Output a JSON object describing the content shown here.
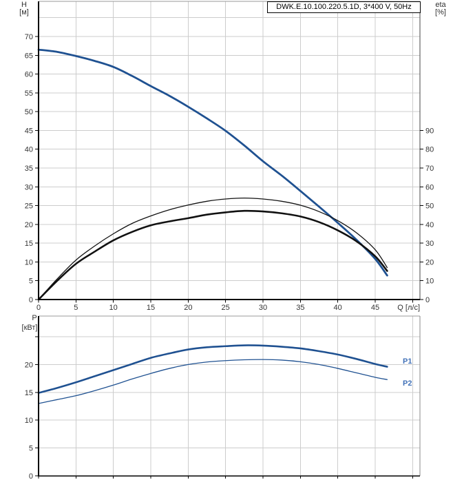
{
  "chart_data": [
    {
      "id": "qh-efficiency-chart",
      "type": "line",
      "title_box": "DWK.E.10.100.220.5.1D, 3*400 V, 50Hz",
      "x_axis": {
        "unit": "Q [л/с]",
        "min": 0,
        "max": 51,
        "grid_step": 5,
        "tick_labels": [
          0,
          5,
          10,
          15,
          20,
          25,
          30,
          35,
          40,
          45
        ]
      },
      "y_left": {
        "name": "H",
        "unit": "[м]",
        "min": 0,
        "max": 79,
        "tick_labels": [
          0,
          5,
          10,
          15,
          20,
          25,
          30,
          35,
          40,
          45,
          50,
          55,
          60,
          65,
          70
        ]
      },
      "y_right": {
        "name": "eta",
        "unit": "[%]",
        "min": 0,
        "max": 158,
        "tick_labels": [
          0,
          10,
          20,
          30,
          40,
          50,
          60,
          70,
          80,
          90
        ]
      },
      "grid_color": "#cccccc",
      "series": [
        {
          "name": "h-curve",
          "axis": "left",
          "color": "#1f5191",
          "width": 2.8,
          "points": [
            [
              0,
              66.5
            ],
            [
              2.5,
              65.9
            ],
            [
              5,
              64.8
            ],
            [
              7.5,
              63.5
            ],
            [
              10,
              61.9
            ],
            [
              12.5,
              59.5
            ],
            [
              15,
              56.8
            ],
            [
              17.5,
              54.2
            ],
            [
              20,
              51.3
            ],
            [
              22.5,
              48.2
            ],
            [
              25,
              44.9
            ],
            [
              27.5,
              41.0
            ],
            [
              30,
              36.8
            ],
            [
              32.5,
              33.0
            ],
            [
              35,
              28.9
            ],
            [
              37.5,
              24.7
            ],
            [
              40,
              20.4
            ],
            [
              42.5,
              15.9
            ],
            [
              45,
              10.8
            ],
            [
              46.6,
              6.4
            ]
          ]
        },
        {
          "name": "eta-pump-curve",
          "axis": "right",
          "color": "#111111",
          "width": 1.3,
          "points": [
            [
              0,
              0
            ],
            [
              2.5,
              11
            ],
            [
              5,
              21
            ],
            [
              7.5,
              28.5
            ],
            [
              10,
              35
            ],
            [
              12.5,
              40.5
            ],
            [
              15,
              44.5
            ],
            [
              17.5,
              47.8
            ],
            [
              20,
              50.3
            ],
            [
              22.5,
              52.3
            ],
            [
              25,
              53.5
            ],
            [
              27.5,
              54.0
            ],
            [
              30,
              53.5
            ],
            [
              32.5,
              52.3
            ],
            [
              35,
              50.2
            ],
            [
              37.5,
              46.8
            ],
            [
              40,
              42.0
            ],
            [
              42.5,
              35.5
            ],
            [
              45,
              26.5
            ],
            [
              46.6,
              17.0
            ]
          ]
        },
        {
          "name": "eta-total-curve",
          "axis": "right",
          "color": "#111111",
          "width": 2.6,
          "points": [
            [
              0,
              0
            ],
            [
              2.5,
              10
            ],
            [
              5,
              19
            ],
            [
              7.5,
              25.5
            ],
            [
              10,
              31.5
            ],
            [
              12.5,
              36.0
            ],
            [
              15,
              39.5
            ],
            [
              17.5,
              41.6
            ],
            [
              20,
              43.3
            ],
            [
              22.5,
              45.2
            ],
            [
              25,
              46.4
            ],
            [
              27.5,
              47.2
            ],
            [
              30,
              46.9
            ],
            [
              32.5,
              45.9
            ],
            [
              35,
              44.2
            ],
            [
              37.5,
              41.2
            ],
            [
              40,
              36.8
            ],
            [
              42.5,
              31.0
            ],
            [
              45,
              23.0
            ],
            [
              46.6,
              15.2
            ]
          ]
        }
      ]
    },
    {
      "id": "power-chart",
      "type": "line",
      "x_axis": {
        "min": 0,
        "max": 51,
        "grid_step": 5,
        "tick_labels": []
      },
      "y_left": {
        "name": "P",
        "unit": "[кВт]",
        "min": 0,
        "max": 28.7,
        "tick_labels": [
          0,
          5,
          10,
          15,
          20
        ],
        "unlabeled_ticks": [
          25
        ]
      },
      "grid_color": "#cccccc",
      "series": [
        {
          "name": "p1-curve",
          "label": "P1",
          "color": "#1f5191",
          "width": 2.6,
          "points": [
            [
              0,
              14.9
            ],
            [
              2.5,
              15.8
            ],
            [
              5,
              16.8
            ],
            [
              7.5,
              17.9
            ],
            [
              10,
              19.0
            ],
            [
              12.5,
              20.1
            ],
            [
              15,
              21.2
            ],
            [
              17.5,
              22.0
            ],
            [
              20,
              22.7
            ],
            [
              22.5,
              23.1
            ],
            [
              25,
              23.3
            ],
            [
              27.5,
              23.45
            ],
            [
              30,
              23.4
            ],
            [
              32.5,
              23.2
            ],
            [
              35,
              22.9
            ],
            [
              37.5,
              22.4
            ],
            [
              40,
              21.8
            ],
            [
              42.5,
              21.0
            ],
            [
              45,
              20.1
            ],
            [
              46.6,
              19.6
            ]
          ]
        },
        {
          "name": "p2-curve",
          "label": "P2",
          "color": "#1f5191",
          "width": 1.3,
          "points": [
            [
              0,
              13.0
            ],
            [
              2.5,
              13.7
            ],
            [
              5,
              14.4
            ],
            [
              7.5,
              15.3
            ],
            [
              10,
              16.3
            ],
            [
              12.5,
              17.4
            ],
            [
              15,
              18.4
            ],
            [
              17.5,
              19.3
            ],
            [
              20,
              20.0
            ],
            [
              22.5,
              20.45
            ],
            [
              25,
              20.7
            ],
            [
              27.5,
              20.85
            ],
            [
              30,
              20.9
            ],
            [
              32.5,
              20.8
            ],
            [
              35,
              20.5
            ],
            [
              37.5,
              20.0
            ],
            [
              40,
              19.3
            ],
            [
              42.5,
              18.5
            ],
            [
              45,
              17.7
            ],
            [
              46.6,
              17.3
            ]
          ]
        }
      ]
    }
  ],
  "label_colors": {
    "tick": "#333333",
    "curve_label": "#4272b8"
  }
}
